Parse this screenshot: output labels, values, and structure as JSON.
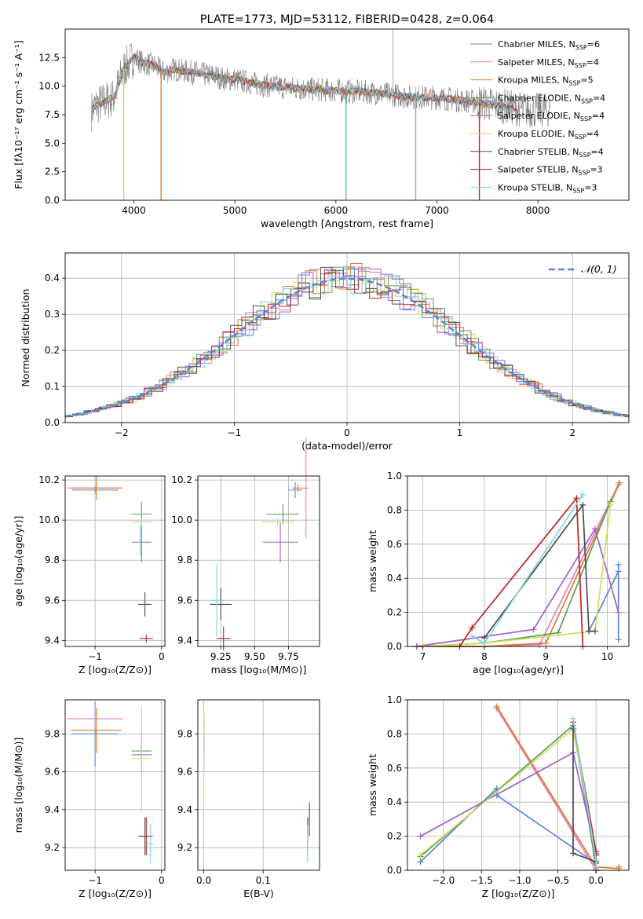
{
  "colors": {
    "series": [
      "#5b84d6",
      "#e37ec2",
      "#e07b2a",
      "#58a05a",
      "#a35fcf",
      "#cbe15c",
      "#4d4d4d",
      "#bf2222",
      "#7ed6e2"
    ]
  },
  "chart_data": [
    {
      "id": "spectrum",
      "type": "line",
      "title": "PLATE=1773, MJD=53112, FIBERID=0428, z=0.064",
      "xlabel": "wavelength [Angstrom, rest frame]",
      "ylabel": "Flux [fλ10⁻¹⁷ erg cm⁻² s⁻¹ A⁻¹]",
      "xlim": [
        3320,
        8900
      ],
      "ylim": [
        0,
        15
      ],
      "xticks": [
        4000,
        5000,
        6000,
        7000,
        8000
      ],
      "yticks": [
        0.0,
        2.5,
        5.0,
        7.5,
        10.0,
        12.5
      ],
      "xtick_labels": [
        "4000",
        "5000",
        "6000",
        "7000",
        "8000"
      ],
      "ytick_labels": [
        "0.0",
        "2.5",
        "5.0",
        "7.5",
        "10.0",
        "12.5"
      ],
      "legend_position": "top-right",
      "data_trend": {
        "x": [
          3580,
          3620,
          3700,
          3800,
          3900,
          4000,
          4100,
          4200,
          4300,
          4400,
          4500,
          4600,
          4700,
          4800,
          4900,
          5000,
          5200,
          5400,
          5600,
          5800,
          6000,
          6200,
          6400,
          6600,
          6800,
          7000,
          7200,
          7400,
          7600,
          7700,
          7800,
          7900
        ],
        "y": [
          7.8,
          8.3,
          8.6,
          9.0,
          11.5,
          12.5,
          12.0,
          11.8,
          11.2,
          11.5,
          11.3,
          11.2,
          11.0,
          10.9,
          10.6,
          10.6,
          10.2,
          10.0,
          9.8,
          9.7,
          9.6,
          9.5,
          9.4,
          9.2,
          9.0,
          9.0,
          8.8,
          8.6,
          8.3,
          8.2,
          8.0,
          7.9
        ]
      },
      "spikes": [
        {
          "x": 3900,
          "y_low": 0
        },
        {
          "x": 4270,
          "y_low": 0
        },
        {
          "x": 6100,
          "y_low": 0
        },
        {
          "x": 6790,
          "y_low": 0
        },
        {
          "x": 7420,
          "y_low": 0
        },
        {
          "x": 6565,
          "y_high": 15
        }
      ],
      "series": [
        {
          "name": "Chabrier MILES, N",
          "sub": "SSP",
          "suffix": "=6"
        },
        {
          "name": "Salpeter MILES, N",
          "sub": "SSP",
          "suffix": "=4"
        },
        {
          "name": "Kroupa MILES, N",
          "sub": "SSP",
          "suffix": "=5"
        },
        {
          "name": "Chabrier ELODIE, N",
          "sub": "SSP",
          "suffix": "=4"
        },
        {
          "name": "Salpeter ELODIE, N",
          "sub": "SSP",
          "suffix": "=4"
        },
        {
          "name": "Kroupa ELODIE, N",
          "sub": "SSP",
          "suffix": "=4"
        },
        {
          "name": "Chabrier STELIB, N",
          "sub": "SSP",
          "suffix": "=4"
        },
        {
          "name": "Salpeter STELIB, N",
          "sub": "SSP",
          "suffix": "=3"
        },
        {
          "name": "Kroupa STELIB, N",
          "sub": "SSP",
          "suffix": "=3"
        }
      ]
    },
    {
      "id": "residuals",
      "type": "step",
      "xlabel": "(data-model)/error",
      "ylabel": "Normed distribution",
      "xlim": [
        -2.5,
        2.5
      ],
      "ylim": [
        0,
        0.47
      ],
      "xticks": [
        -2,
        -1,
        0,
        1,
        2
      ],
      "yticks": [
        0.0,
        0.1,
        0.2,
        0.3,
        0.4
      ],
      "xtick_labels": [
        "−2",
        "−1",
        "0",
        "1",
        "2"
      ],
      "ytick_labels": [
        "0.0",
        "0.1",
        "0.2",
        "0.3",
        "0.4"
      ],
      "bin_width": 0.1,
      "reference": {
        "name": "𝒩(0, 1)",
        "mean": 0,
        "sigma": 1
      },
      "legend_position": "top-right"
    },
    {
      "id": "age-vs-z",
      "type": "errorbar",
      "xlabel": "Z [log₁₀(Z/Z⊙)]",
      "ylabel": "age  [log₁₀(age/yr)]",
      "xlim": [
        -1.45,
        0.05
      ],
      "ylim": [
        9.37,
        10.22
      ],
      "xticks": [
        -1,
        0
      ],
      "yticks": [
        9.4,
        9.6,
        9.8,
        10.0,
        10.2
      ],
      "xtick_labels": [
        "−1",
        "0"
      ],
      "ytick_labels": [
        "9.4",
        "9.6",
        "9.8",
        "10.0",
        "10.2"
      ],
      "points": [
        {
          "x": -1.0,
          "y": 10.15,
          "xerr": 0.35,
          "yerr": 0.02,
          "c": 0
        },
        {
          "x": -1.0,
          "y": 10.16,
          "xerr": 0.42,
          "yerr": 0.01,
          "c": 1
        },
        {
          "x": -0.98,
          "y": 10.16,
          "xerr": 0.38,
          "yerr": 0.06,
          "c": 2
        },
        {
          "x": -0.3,
          "y": 10.03,
          "xerr": 0.15,
          "yerr": 0.06,
          "c": 3
        },
        {
          "x": -0.3,
          "y": 9.89,
          "xerr": 0.15,
          "yerr": 0.1,
          "c": 4
        },
        {
          "x": -0.3,
          "y": 9.99,
          "xerr": 0.15,
          "yerr": 0.02,
          "c": 5
        },
        {
          "x": -0.25,
          "y": 9.58,
          "xerr": 0.1,
          "yerr": 0.06,
          "c": 6
        },
        {
          "x": -0.23,
          "y": 9.41,
          "xerr": 0.1,
          "yerr": 0.02,
          "c": 7
        },
        {
          "x": -0.32,
          "y": 9.9,
          "xerr": 0.02,
          "yerr": 0.08,
          "c": 8
        }
      ]
    },
    {
      "id": "age-vs-mass",
      "type": "errorbar",
      "xlabel": "mass [log₁₀(M/M⊙)]",
      "ylabel": "",
      "xlim": [
        9.08,
        9.98
      ],
      "ylim": [
        9.37,
        10.22
      ],
      "xticks": [
        9.25,
        9.5,
        9.75
      ],
      "yticks": [
        9.4,
        9.6,
        9.8,
        10.0,
        10.2
      ],
      "xtick_labels": [
        "9.25",
        "9.50",
        "9.75"
      ],
      "ytick_labels": [
        "9.4",
        "9.6",
        "9.8",
        "10.0",
        "10.2"
      ],
      "points": [
        {
          "x": 9.8,
          "y": 10.15,
          "xerr": 0.05,
          "yerr": 0.04,
          "c": 0
        },
        {
          "x": 9.88,
          "y": 10.16,
          "xerr": 0.02,
          "yerr": 0.25,
          "c": 1
        },
        {
          "x": 9.82,
          "y": 10.16,
          "xerr": 0.04,
          "yerr": 0.02,
          "c": 2
        },
        {
          "x": 9.71,
          "y": 10.03,
          "xerr": 0.12,
          "yerr": 0.05,
          "c": 3
        },
        {
          "x": 9.69,
          "y": 9.89,
          "xerr": 0.13,
          "yerr": 0.1,
          "c": 4
        },
        {
          "x": 9.67,
          "y": 9.99,
          "xerr": 0.12,
          "yerr": 0.02,
          "c": 5
        },
        {
          "x": 9.25,
          "y": 9.58,
          "xerr": 0.08,
          "yerr": 0.08,
          "c": 6
        },
        {
          "x": 9.27,
          "y": 9.41,
          "xerr": 0.05,
          "yerr": 0.06,
          "c": 7
        },
        {
          "x": 9.22,
          "y": 9.6,
          "xerr": 0.05,
          "yerr": 0.18,
          "c": 8
        }
      ]
    },
    {
      "id": "weight-vs-age",
      "type": "line",
      "xlabel": "age  [log₁₀(age/yr)]",
      "ylabel": "mass weight",
      "xlim": [
        6.75,
        10.35
      ],
      "ylim": [
        0,
        1
      ],
      "xticks": [
        7,
        8,
        9,
        10
      ],
      "yticks": [
        0.0,
        0.2,
        0.4,
        0.6,
        0.8,
        1.0
      ],
      "xtick_labels": [
        "7",
        "8",
        "9",
        "10"
      ],
      "ytick_labels": [
        "0.0",
        "0.2",
        "0.4",
        "0.6",
        "0.8",
        "1.0"
      ],
      "series": [
        {
          "c": 0,
          "x": [
            10.18,
            10.18,
            10.18,
            9.7
          ],
          "y": [
            0.04,
            0.48,
            0.44,
            0.09
          ]
        },
        {
          "c": 1,
          "x": [
            6.9,
            8.0,
            8.9,
            10.18
          ],
          "y": [
            0.0,
            0.0,
            0.01,
            0.95
          ]
        },
        {
          "c": 2,
          "x": [
            6.9,
            8.0,
            9.0,
            10.2
          ],
          "y": [
            0.0,
            0.0,
            0.02,
            0.96
          ]
        },
        {
          "c": 3,
          "x": [
            7.0,
            8.0,
            9.2,
            10.05
          ],
          "y": [
            0.0,
            0.02,
            0.08,
            0.85
          ]
        },
        {
          "c": 4,
          "x": [
            6.9,
            8.8,
            9.8,
            10.18
          ],
          "y": [
            0.0,
            0.1,
            0.69,
            0.2
          ]
        },
        {
          "c": 5,
          "x": [
            7.0,
            8.0,
            9.8,
            10.05
          ],
          "y": [
            0.0,
            0.02,
            0.09,
            0.83
          ]
        },
        {
          "c": 6,
          "x": [
            8.0,
            9.6,
            9.7,
            9.8
          ],
          "y": [
            0.05,
            0.83,
            0.09,
            0.09
          ]
        },
        {
          "c": 7,
          "x": [
            7.6,
            7.8,
            9.5,
            9.6
          ],
          "y": [
            0.0,
            0.11,
            0.87,
            0.0
          ]
        },
        {
          "c": 8,
          "x": [
            7.8,
            8.0,
            9.6,
            9.6
          ],
          "y": [
            0.06,
            0.02,
            0.89,
            0.89
          ]
        }
      ]
    },
    {
      "id": "mass-vs-z",
      "type": "errorbar",
      "xlabel": "Z [log₁₀(Z/Z⊙)]",
      "ylabel": "mass [log₁₀(M/M⊙)]",
      "xlim": [
        -1.45,
        0.05
      ],
      "ylim": [
        9.08,
        9.98
      ],
      "xticks": [
        -1,
        0
      ],
      "yticks": [
        9.2,
        9.4,
        9.6,
        9.8
      ],
      "xtick_labels": [
        "−1",
        "0"
      ],
      "ytick_labels": [
        "9.2",
        "9.4",
        "9.6",
        "9.8"
      ],
      "points": [
        {
          "x": -1.0,
          "y": 9.8,
          "xerr": 0.35,
          "yerr": 0.17,
          "c": 0
        },
        {
          "x": -1.0,
          "y": 9.88,
          "xerr": 0.42,
          "yerr": 0.05,
          "c": 1
        },
        {
          "x": -0.98,
          "y": 9.82,
          "xerr": 0.38,
          "yerr": 0.12,
          "c": 2
        },
        {
          "x": -0.3,
          "y": 9.71,
          "xerr": 0.15,
          "yerr": 0.1,
          "c": 3
        },
        {
          "x": -0.3,
          "y": 9.69,
          "xerr": 0.15,
          "yerr": 0.11,
          "c": 4
        },
        {
          "x": -0.3,
          "y": 9.67,
          "xerr": 0.15,
          "yerr": 0.28,
          "c": 5
        },
        {
          "x": -0.25,
          "y": 9.26,
          "xerr": 0.1,
          "yerr": 0.1,
          "c": 6
        },
        {
          "x": -0.23,
          "y": 9.26,
          "xerr": 0.1,
          "yerr": 0.1,
          "c": 7
        },
        {
          "x": -0.17,
          "y": 9.22,
          "xerr": 0.05,
          "yerr": 0.1,
          "c": 8
        }
      ]
    },
    {
      "id": "mass-vs-ebv",
      "type": "errorbar",
      "xlabel": "E(B-V)",
      "ylabel": "",
      "xlim": [
        -0.01,
        0.195
      ],
      "ylim": [
        9.08,
        9.98
      ],
      "xticks": [
        0.0,
        0.1
      ],
      "yticks": [
        9.2,
        9.4,
        9.6,
        9.8
      ],
      "xtick_labels": [
        "0.0",
        "0.1"
      ],
      "ytick_labels": [
        "9.2",
        "9.4",
        "9.6",
        "9.8"
      ],
      "points": [
        {
          "x": 0.0,
          "y": 9.8,
          "xerr": 0,
          "yerr": 0.1,
          "c": 0
        },
        {
          "x": 0.0,
          "y": 9.88,
          "xerr": 0,
          "yerr": 0.05,
          "c": 1
        },
        {
          "x": 0.0,
          "y": 9.82,
          "xerr": 0,
          "yerr": 0.12,
          "c": 2
        },
        {
          "x": 0.0,
          "y": 9.71,
          "xerr": 0,
          "yerr": 0.1,
          "c": 3
        },
        {
          "x": 0.0,
          "y": 9.69,
          "xerr": 0,
          "yerr": 0.11,
          "c": 4
        },
        {
          "x": 0.0,
          "y": 9.67,
          "xerr": 0,
          "yerr": 0.28,
          "c": 5
        },
        {
          "x": 0.175,
          "y": 9.26,
          "xerr": 0,
          "yerr": 0.1,
          "c": 6
        },
        {
          "x": 0.178,
          "y": 9.35,
          "xerr": 0,
          "yerr": 0.09,
          "c": 7
        },
        {
          "x": 0.175,
          "y": 9.22,
          "xerr": 0,
          "yerr": 0.1,
          "c": 8
        }
      ]
    },
    {
      "id": "weight-vs-z",
      "type": "line",
      "xlabel": "Z [log₁₀(Z/Z⊙)]",
      "ylabel": "mass weight",
      "xlim": [
        -2.47,
        0.43
      ],
      "ylim": [
        0,
        1
      ],
      "xticks": [
        -2.0,
        -1.5,
        -1.0,
        -0.5,
        0.0
      ],
      "yticks": [
        0.0,
        0.2,
        0.4,
        0.6,
        0.8,
        1.0
      ],
      "xtick_labels": [
        "−2.0",
        "−1.5",
        "−1.0",
        "−0.5",
        "0.0"
      ],
      "ytick_labels": [
        "0.0",
        "0.2",
        "0.4",
        "0.6",
        "0.8",
        "1.0"
      ],
      "series": [
        {
          "c": 0,
          "x": [
            -2.3,
            -1.3,
            -1.3,
            0.0,
            0.0
          ],
          "y": [
            0.05,
            0.48,
            0.44,
            0.04,
            0.09
          ]
        },
        {
          "c": 1,
          "x": [
            -1.3,
            0.0,
            0.0
          ],
          "y": [
            0.95,
            0.0,
            0.01
          ]
        },
        {
          "c": 2,
          "x": [
            -1.3,
            0.0,
            0.3,
            0.3
          ],
          "y": [
            0.96,
            0.02,
            0.01,
            0.02
          ]
        },
        {
          "c": 3,
          "x": [
            -2.3,
            -0.3,
            0.0
          ],
          "y": [
            0.08,
            0.85,
            0.02
          ]
        },
        {
          "c": 4,
          "x": [
            -2.3,
            -0.3,
            0.0
          ],
          "y": [
            0.2,
            0.69,
            0.1
          ]
        },
        {
          "c": 5,
          "x": [
            -2.3,
            -0.3,
            0.0
          ],
          "y": [
            0.09,
            0.83,
            0.09
          ]
        },
        {
          "c": 6,
          "x": [
            -0.3,
            -0.3,
            0.0,
            0.0
          ],
          "y": [
            0.83,
            0.1,
            0.05,
            0.09
          ]
        },
        {
          "c": 7,
          "x": [
            -0.3,
            0.0,
            0.0
          ],
          "y": [
            0.87,
            0.11,
            0.0
          ]
        },
        {
          "c": 8,
          "x": [
            -0.3,
            0.0,
            0.0
          ],
          "y": [
            0.89,
            0.06,
            0.02
          ]
        }
      ]
    }
  ]
}
